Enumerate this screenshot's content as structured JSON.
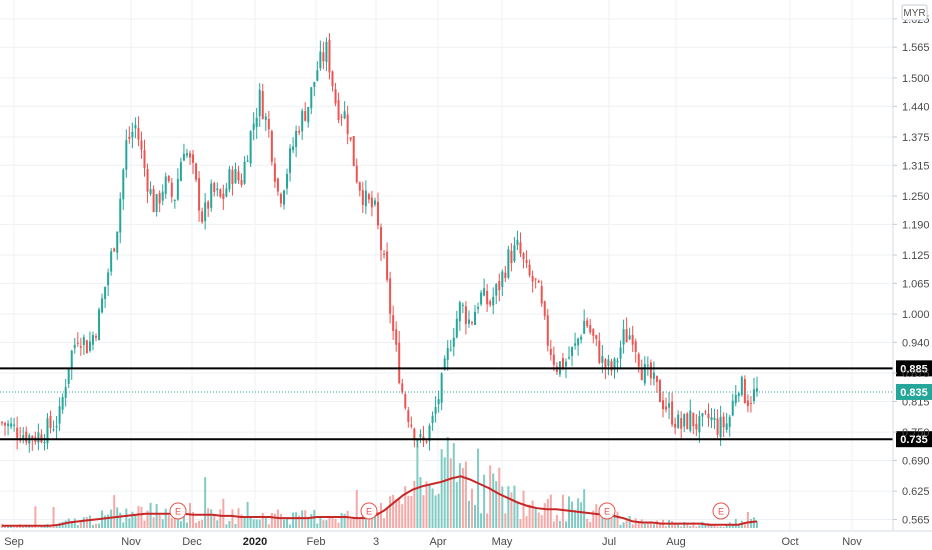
{
  "currency": "MYR",
  "colors": {
    "up": "#26a69a",
    "down": "#ef5350",
    "ma": "#c62828",
    "level_line": "#000000",
    "last_price": "#26a69a",
    "grid": "#eef1f5",
    "event": "#e5534b"
  },
  "chart_data": {
    "type": "candlestick",
    "x_axis": {
      "labels": [
        "Sep",
        "Nov",
        "Dec",
        "2020",
        "Feb",
        "3",
        "Apr",
        "May",
        "Jul",
        "Aug",
        "Oct",
        "Nov"
      ],
      "bold_label": "2020"
    },
    "y_axis": {
      "ticks": [
        "0.565",
        "0.625",
        "0.690",
        "0.750",
        "0.815",
        "0.875",
        "0.940",
        "1.000",
        "1.065",
        "1.125",
        "1.190",
        "1.250",
        "1.315",
        "1.375",
        "1.440",
        "1.500",
        "1.565",
        "1.625"
      ],
      "range": [
        0.53,
        1.665
      ],
      "position": "right"
    },
    "horizontal_levels": [
      {
        "value": 0.885,
        "label": "0.885"
      },
      {
        "value": 0.735,
        "label": "0.735"
      }
    ],
    "last_price": {
      "value": 0.835,
      "label": "0.835"
    },
    "events": [
      "E",
      "E",
      "E",
      "E"
    ],
    "grid": true,
    "price_path": [
      [
        0.77,
        0.78
      ],
      [
        0.76,
        0.77
      ],
      [
        0.75,
        0.76
      ],
      [
        0.74,
        0.75
      ],
      [
        0.745,
        0.76
      ],
      [
        0.76,
        0.76
      ],
      [
        0.78,
        0.8
      ],
      [
        0.9,
        0.9
      ],
      [
        0.96,
        1.0
      ],
      [
        0.93,
        0.95
      ],
      [
        0.98,
        1.0
      ],
      [
        1.08,
        1.1
      ],
      [
        1.18,
        1.2
      ],
      [
        1.36,
        1.38
      ],
      [
        1.4,
        1.4
      ],
      [
        1.3,
        1.32
      ],
      [
        1.22,
        1.22
      ],
      [
        1.28,
        1.3
      ],
      [
        1.24,
        1.26
      ],
      [
        1.36,
        1.36
      ],
      [
        1.3,
        1.31
      ],
      [
        1.2,
        1.2
      ],
      [
        1.26,
        1.28
      ],
      [
        1.24,
        1.24
      ],
      [
        1.3,
        1.3
      ],
      [
        1.28,
        1.28
      ],
      [
        1.38,
        1.4
      ],
      [
        1.46,
        1.48
      ],
      [
        1.38,
        1.38
      ],
      [
        1.24,
        1.24
      ],
      [
        1.32,
        1.34
      ],
      [
        1.4,
        1.4
      ],
      [
        1.44,
        1.46
      ],
      [
        1.52,
        1.54
      ],
      [
        1.56,
        1.56
      ],
      [
        1.44,
        1.44
      ],
      [
        1.42,
        1.42
      ],
      [
        1.3,
        1.3
      ],
      [
        1.24,
        1.24
      ],
      [
        1.22,
        1.22
      ],
      [
        1.1,
        1.05
      ],
      [
        0.95,
        0.9
      ],
      [
        0.82,
        0.78
      ],
      [
        0.76,
        0.75
      ],
      [
        0.72,
        0.74
      ],
      [
        0.77,
        0.76
      ],
      [
        0.85,
        0.88
      ],
      [
        0.95,
        1.0
      ],
      [
        1.02,
        1.04
      ],
      [
        0.98,
        0.98
      ],
      [
        1.04,
        1.06
      ],
      [
        1.02,
        1.02
      ],
      [
        1.06,
        1.08
      ],
      [
        1.12,
        1.14
      ],
      [
        1.14,
        1.14
      ],
      [
        1.08,
        1.06
      ],
      [
        1.06,
        1.04
      ],
      [
        0.95,
        0.93
      ],
      [
        0.89,
        0.9
      ],
      [
        0.9,
        0.92
      ],
      [
        0.93,
        0.92
      ],
      [
        0.99,
        1.0
      ],
      [
        0.94,
        0.92
      ],
      [
        0.89,
        0.88
      ],
      [
        0.88,
        0.87
      ],
      [
        0.95,
        0.98
      ],
      [
        0.96,
        0.94
      ],
      [
        0.88,
        0.88
      ],
      [
        0.86,
        0.85
      ],
      [
        0.82,
        0.81
      ],
      [
        0.79,
        0.78
      ],
      [
        0.76,
        0.75
      ],
      [
        0.78,
        0.79
      ],
      [
        0.76,
        0.76
      ],
      [
        0.78,
        0.77
      ],
      [
        0.76,
        0.76
      ],
      [
        0.77,
        0.77
      ],
      [
        0.86,
        0.88
      ],
      [
        0.82,
        0.79
      ],
      [
        0.835,
        0.835
      ]
    ],
    "volume_ma": [
      0.02,
      0.02,
      0.02,
      0.02,
      0.02,
      0.02,
      0.03,
      0.05,
      0.06,
      0.07,
      0.08,
      0.09,
      0.1,
      0.11,
      0.12,
      0.13,
      0.13,
      0.13,
      0.13,
      0.13,
      0.12,
      0.12,
      0.12,
      0.11,
      0.11,
      0.1,
      0.1,
      0.1,
      0.1,
      0.09,
      0.09,
      0.09,
      0.09,
      0.1,
      0.1,
      0.1,
      0.1,
      0.09,
      0.09,
      0.11,
      0.16,
      0.23,
      0.3,
      0.35,
      0.38,
      0.4,
      0.42,
      0.45,
      0.47,
      0.44,
      0.4,
      0.36,
      0.31,
      0.27,
      0.23,
      0.2,
      0.18,
      0.17,
      0.17,
      0.16,
      0.15,
      0.14,
      0.13,
      0.12,
      0.11,
      0.09,
      0.06,
      0.05,
      0.05,
      0.04,
      0.04,
      0.04,
      0.04,
      0.04,
      0.03,
      0.03,
      0.03,
      0.03,
      0.05,
      0.06
    ]
  }
}
